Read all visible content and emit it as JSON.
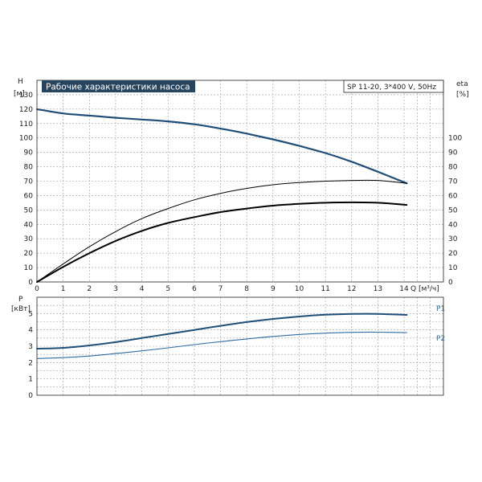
{
  "chart_data": [
    {
      "type": "line",
      "title": "Рабочие характеристики насоса",
      "subtitle": "SP 11-20, 3*400 V, 50Hz",
      "y_left_label": "H",
      "y_left_unit": "[м]",
      "y_right_label": "eta",
      "y_right_unit": "[%]",
      "x_axis_label": "Q [м³/ч]",
      "xlim": [
        0,
        15.5
      ],
      "ylim": [
        0,
        140
      ],
      "x_ticks": [
        "0",
        "1",
        "2",
        "3",
        "4",
        "5",
        "6",
        "7",
        "8",
        "9",
        "10",
        "11",
        "12",
        "13",
        "14"
      ],
      "y_left_ticks": [
        "0",
        "10",
        "20",
        "30",
        "40",
        "50",
        "60",
        "70",
        "80",
        "90",
        "100",
        "110",
        "120",
        "130"
      ],
      "y_right_ticks": [
        "0",
        "10",
        "20",
        "30",
        "40",
        "50",
        "60",
        "70",
        "80",
        "90",
        "100"
      ],
      "grid": true,
      "colors": {
        "head": "#1f4e79",
        "eta": "#000000"
      },
      "series": [
        {
          "axis": "H",
          "x": [
            0,
            1,
            2,
            3,
            4,
            5,
            6,
            7,
            8,
            9,
            10,
            11,
            12,
            13,
            14.1
          ],
          "values": [
            120,
            117,
            115.5,
            114,
            112.8,
            111.5,
            109.5,
            106.5,
            103,
            99,
            94.5,
            89.5,
            83.5,
            76.5,
            68.5
          ]
        },
        {
          "axis": "eta",
          "x": [
            0,
            1,
            2,
            3,
            4,
            5,
            6,
            7,
            8,
            9,
            10,
            11,
            12,
            13,
            14.1
          ],
          "values": [
            0,
            12.5,
            24.5,
            35,
            44,
            51,
            57,
            61.5,
            65,
            67.5,
            69,
            70,
            70.5,
            70.5,
            68.5
          ]
        },
        {
          "axis": "eta",
          "x": [
            0,
            1,
            2,
            3,
            4,
            5,
            6,
            7,
            8,
            9,
            10,
            11,
            12,
            13,
            14.1
          ],
          "values": [
            0,
            10.5,
            20,
            28.5,
            35.5,
            41,
            45,
            48.5,
            51,
            53,
            54.2,
            55,
            55.3,
            55,
            53.5
          ]
        }
      ]
    },
    {
      "type": "line",
      "y_label": "P",
      "y_unit": "[кВт]",
      "xlim": [
        0,
        15.5
      ],
      "ylim": [
        0,
        6
      ],
      "y_ticks": [
        "0",
        "1",
        "2",
        "3",
        "4",
        "5"
      ],
      "grid": true,
      "colors": {
        "p1": "#1f4e79",
        "p2": "#2e6da4"
      },
      "series": [
        {
          "name": "P1",
          "x": [
            0,
            1,
            2,
            3,
            4,
            5,
            6,
            7,
            8,
            9,
            10,
            11,
            12,
            13,
            14.1
          ],
          "values": [
            2.85,
            2.9,
            3.05,
            3.25,
            3.5,
            3.75,
            4.0,
            4.25,
            4.48,
            4.67,
            4.82,
            4.93,
            4.98,
            4.98,
            4.92
          ]
        },
        {
          "name": "P2",
          "x": [
            0,
            1,
            2,
            3,
            4,
            5,
            6,
            7,
            8,
            9,
            10,
            11,
            12,
            13,
            14.1
          ],
          "values": [
            2.25,
            2.3,
            2.4,
            2.55,
            2.72,
            2.9,
            3.1,
            3.28,
            3.45,
            3.6,
            3.72,
            3.8,
            3.85,
            3.86,
            3.83
          ]
        }
      ]
    }
  ]
}
